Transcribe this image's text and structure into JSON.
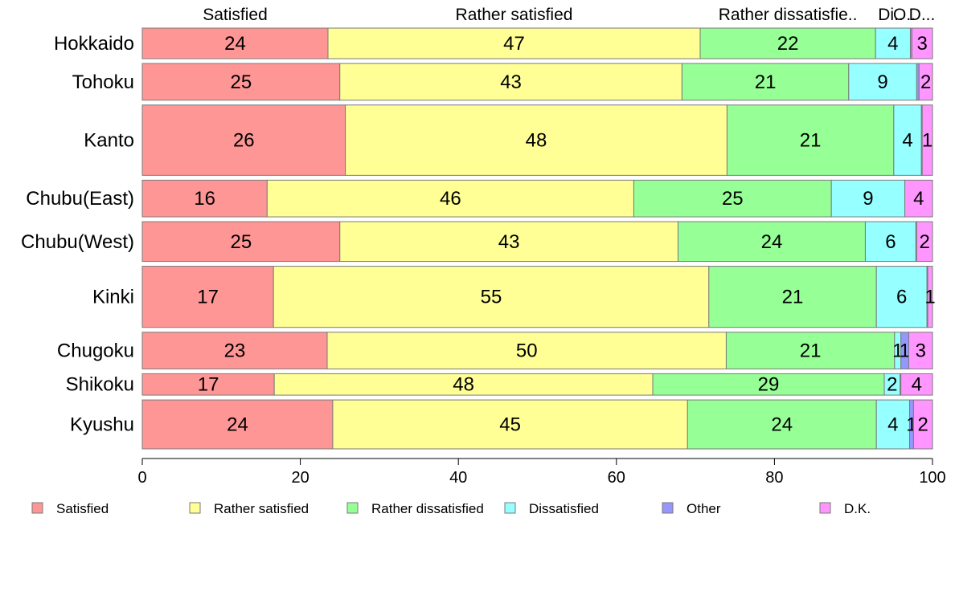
{
  "chart_data": {
    "type": "bar",
    "orientation": "horizontal",
    "stacked": true,
    "categories": [
      "Hokkaido",
      "Tohoku",
      "Kanto",
      "Chubu(East)",
      "Chubu(West)",
      "Kinki",
      "Chugoku",
      "Shikoku",
      "Kyushu"
    ],
    "series": [
      {
        "name": "Satisfied",
        "color": "#FF9696",
        "values": [
          23.5,
          25.0,
          25.7,
          15.8,
          25.0,
          16.6,
          23.4,
          16.7,
          24.1
        ],
        "labels": [
          "24",
          "25",
          "26",
          "16",
          "25",
          "17",
          "23",
          "17",
          "24"
        ]
      },
      {
        "name": "Rather satisfied",
        "color": "#FFFF96",
        "values": [
          47.1,
          43.3,
          48.3,
          46.4,
          42.8,
          55.1,
          50.5,
          47.9,
          44.9
        ],
        "labels": [
          "47",
          "43",
          "48",
          "46",
          "43",
          "55",
          "50",
          "48",
          "45"
        ]
      },
      {
        "name": "Rather dissatisfied",
        "color": "#96FF96",
        "values": [
          22.2,
          21.1,
          21.1,
          25.0,
          23.7,
          21.2,
          21.3,
          29.3,
          23.9
        ],
        "labels": [
          "22",
          "21",
          "21",
          "25",
          "24",
          "21",
          "21",
          "29",
          "24"
        ]
      },
      {
        "name": "Dissatisfied",
        "color": "#96FFFF",
        "values": [
          4.4,
          8.6,
          3.5,
          9.3,
          6.4,
          6.4,
          0.8,
          2.0,
          4.2
        ],
        "labels": [
          "4",
          "9",
          "4",
          "9",
          "6",
          "6",
          "1",
          "2",
          "4"
        ]
      },
      {
        "name": "Other",
        "color": "#9696FF",
        "values": [
          0.2,
          0.3,
          0.1,
          0.0,
          0.1,
          0.1,
          1.0,
          0.1,
          0.5
        ],
        "labels": [
          "",
          "",
          "",
          "",
          "",
          "",
          "1",
          "",
          "1"
        ]
      },
      {
        "name": "D.K.",
        "color": "#FF96FF",
        "values": [
          2.6,
          1.7,
          1.3,
          3.5,
          2.0,
          0.6,
          3.0,
          4.0,
          2.4
        ],
        "labels": [
          "3",
          "2",
          "1",
          "4",
          "2",
          "1",
          "3",
          "4",
          "2"
        ]
      }
    ],
    "top_labels": [
      "Satisfied",
      "Rather satisfied",
      "Rather dissatisfie..",
      "Di..",
      "O..",
      "D..."
    ],
    "xlim": [
      0,
      100
    ],
    "xticks": [
      "0",
      "20",
      "40",
      "60",
      "80",
      "100"
    ],
    "row_weights": [
      1.0,
      1.2,
      2.3,
      1.2,
      1.3,
      2.0,
      1.2,
      0.7,
      1.6
    ],
    "legend_position": "bottom",
    "grid": false
  }
}
